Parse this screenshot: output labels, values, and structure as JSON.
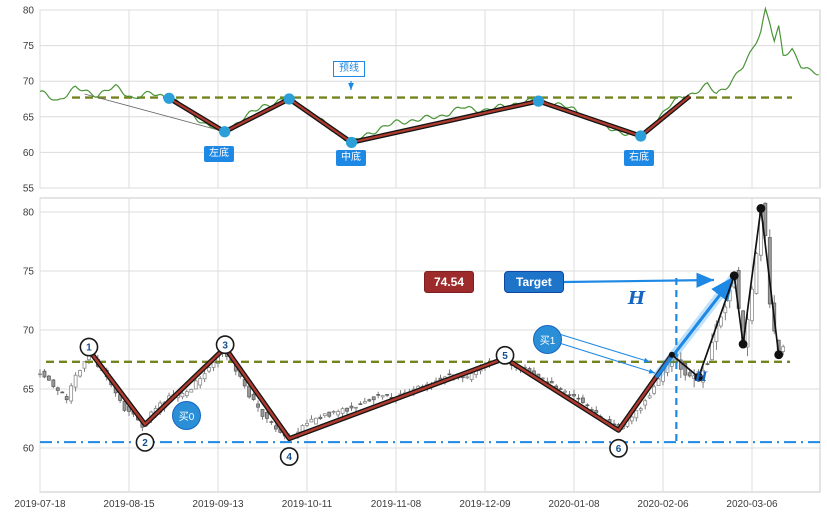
{
  "colors": {
    "green_line": "#4a9438",
    "neckline": "#75831e",
    "zigzag_core": "#b03a2e",
    "zigzag_outline": "#141414",
    "blue": "#1e88e5",
    "blue_dark": "#1565c0",
    "dot_blue": "#2b9fd8",
    "grid": "#dcdcdc",
    "panel_border": "#c8c8c8",
    "tick_text": "#3c3c3c",
    "candle_up_fill": "#ffffff",
    "candle_up_stroke": "#8b8b8b",
    "candle_down_fill": "#9b9b9b",
    "candle_down_stroke": "#5f5f5f",
    "wick": "#6f6f6f",
    "black": "#111111",
    "pivot_number": "#14508c"
  },
  "x_ticks": [
    {
      "label": "2019-07-18",
      "i": 0
    },
    {
      "label": "2019-08-15",
      "i": 20
    },
    {
      "label": "2019-09-13",
      "i": 40
    },
    {
      "label": "2019-10-11",
      "i": 60
    },
    {
      "label": "2019-11-08",
      "i": 80
    },
    {
      "label": "2019-12-09",
      "i": 100
    },
    {
      "label": "2020-01-08",
      "i": 120
    },
    {
      "label": "2020-02-06",
      "i": 140
    },
    {
      "label": "2020-03-06",
      "i": 160
    }
  ],
  "chart_data": [
    {
      "id": "pattern_overview",
      "type": "line",
      "ylim": [
        55,
        80
      ],
      "yticks": [
        55,
        60,
        65,
        70,
        75,
        80
      ],
      "neckline_price": 67.7,
      "neckline_label": "预线",
      "pivot_labels": {
        "left": "左底",
        "middle": "中底",
        "right": "右底"
      },
      "zigzag": [
        [
          29,
          67.6
        ],
        [
          41.5,
          62.9
        ],
        [
          56,
          67.5
        ],
        [
          70,
          61.4
        ],
        [
          112,
          67.2
        ],
        [
          135,
          62.3
        ],
        [
          146,
          67.9
        ]
      ],
      "pivot_dots": [
        [
          29,
          67.6
        ],
        [
          41.5,
          62.9
        ],
        [
          56,
          67.5
        ],
        [
          70,
          61.4
        ],
        [
          112,
          67.2
        ],
        [
          135,
          62.3
        ]
      ],
      "trendline": [
        [
          10,
          68.2
        ],
        [
          41.5,
          62.9
        ]
      ],
      "price_keypoints": [
        [
          0,
          68.4
        ],
        [
          4,
          67.3
        ],
        [
          8,
          69.0
        ],
        [
          13,
          68.1
        ],
        [
          17,
          69.2
        ],
        [
          21,
          67.6
        ],
        [
          25,
          68.3
        ],
        [
          29,
          67.8
        ],
        [
          33,
          66.0
        ],
        [
          37,
          64.0
        ],
        [
          41.5,
          62.8
        ],
        [
          45,
          64.5
        ],
        [
          50,
          66.5
        ],
        [
          56,
          67.6
        ],
        [
          60,
          66.0
        ],
        [
          65,
          63.5
        ],
        [
          70,
          61.4
        ],
        [
          75,
          63.0
        ],
        [
          80,
          64.2
        ],
        [
          85,
          64.6
        ],
        [
          90,
          65.1
        ],
        [
          95,
          66.3
        ],
        [
          100,
          65.9
        ],
        [
          105,
          66.6
        ],
        [
          108,
          67.0
        ],
        [
          112,
          67.3
        ],
        [
          116,
          66.8
        ],
        [
          120,
          66.0
        ],
        [
          124,
          64.6
        ],
        [
          128,
          63.4
        ],
        [
          132,
          62.6
        ],
        [
          135,
          62.3
        ],
        [
          138,
          64.1
        ],
        [
          141,
          66.2
        ],
        [
          144,
          67.9
        ],
        [
          147,
          68.3
        ],
        [
          150,
          69.4
        ],
        [
          152,
          68.4
        ],
        [
          154,
          69.1
        ],
        [
          156,
          70.4
        ],
        [
          158,
          72.0
        ],
        [
          160,
          74.4
        ],
        [
          162,
          77.2
        ],
        [
          163,
          80.0
        ],
        [
          164,
          78.2
        ],
        [
          165,
          75.6
        ],
        [
          166,
          77.4
        ],
        [
          167,
          73.6
        ],
        [
          169,
          74.6
        ],
        [
          171,
          72.2
        ],
        [
          173,
          71.3
        ],
        [
          175,
          71.0
        ]
      ]
    },
    {
      "id": "candlestick_main",
      "type": "candlestick",
      "ylim": [
        56.3,
        81.2
      ],
      "yticks": [
        60,
        65,
        70,
        75,
        80
      ],
      "neckline_price": 67.3,
      "support_price": 60.5,
      "target_price": 74.54,
      "pivots": [
        {
          "label": "1",
          "i": 11,
          "p": 68.3,
          "kind": "peak"
        },
        {
          "label": "2",
          "i": 23.6,
          "p": 62.0,
          "kind": "trough"
        },
        {
          "label": "3",
          "i": 41.6,
          "p": 68.5,
          "kind": "peak"
        },
        {
          "label": "4",
          "i": 56,
          "p": 60.8,
          "kind": "trough"
        },
        {
          "label": "5",
          "i": 104.5,
          "p": 67.6,
          "kind": "peak"
        },
        {
          "label": "6",
          "i": 130,
          "p": 61.5,
          "kind": "trough"
        }
      ],
      "breakout": [
        142,
        67.9
      ],
      "recent_zigzag": [
        [
          142,
          67.9
        ],
        [
          148,
          66.0
        ],
        [
          156,
          74.6
        ],
        [
          158,
          68.8
        ],
        [
          162,
          80.3
        ],
        [
          166,
          67.9
        ]
      ],
      "projection": {
        "from": [
          138.5,
          66.0
        ],
        "to": [
          156,
          74.54
        ]
      },
      "vline_i": 143,
      "price_keypoints": [
        [
          0,
          66.5
        ],
        [
          3,
          65.2
        ],
        [
          6,
          64.2
        ],
        [
          9,
          66.8
        ],
        [
          11,
          68.3
        ],
        [
          14,
          66.5
        ],
        [
          18,
          63.8
        ],
        [
          23,
          62.0
        ],
        [
          26,
          63.2
        ],
        [
          29,
          64.3
        ],
        [
          32,
          64.6
        ],
        [
          35,
          65.5
        ],
        [
          38,
          66.8
        ],
        [
          41,
          68.5
        ],
        [
          44,
          66.5
        ],
        [
          47,
          64.5
        ],
        [
          50,
          62.8
        ],
        [
          53,
          61.5
        ],
        [
          56,
          60.8
        ],
        [
          60,
          62.0
        ],
        [
          64,
          62.8
        ],
        [
          68,
          63.2
        ],
        [
          72,
          63.8
        ],
        [
          76,
          64.5
        ],
        [
          80,
          64.2
        ],
        [
          84,
          65.0
        ],
        [
          88,
          65.5
        ],
        [
          92,
          66.2
        ],
        [
          96,
          66.0
        ],
        [
          100,
          67.0
        ],
        [
          104,
          67.6
        ],
        [
          108,
          66.8
        ],
        [
          112,
          66.0
        ],
        [
          116,
          65.2
        ],
        [
          120,
          64.3
        ],
        [
          124,
          63.2
        ],
        [
          127,
          62.3
        ],
        [
          130,
          61.5
        ],
        [
          133,
          62.5
        ],
        [
          136,
          64.0
        ],
        [
          139,
          65.8
        ],
        [
          142,
          67.9
        ],
        [
          144,
          67.0
        ],
        [
          146,
          66.3
        ],
        [
          148,
          66.0
        ],
        [
          150,
          67.5
        ],
        [
          152,
          70.0
        ],
        [
          154,
          72.3
        ],
        [
          156,
          74.6
        ],
        [
          157,
          71.5
        ],
        [
          158,
          68.8
        ],
        [
          159,
          70.5
        ],
        [
          160,
          73.5
        ],
        [
          161,
          76.5
        ],
        [
          162,
          80.3
        ],
        [
          163,
          77.5
        ],
        [
          164,
          72.0
        ],
        [
          165,
          69.5
        ],
        [
          166,
          67.9
        ],
        [
          167,
          69.0
        ]
      ]
    }
  ],
  "annotations": {
    "value_box": "74.54",
    "target_box": "Target",
    "buy0": "买0",
    "buy1": "买1",
    "h_big": "H",
    "h_small": "H"
  }
}
